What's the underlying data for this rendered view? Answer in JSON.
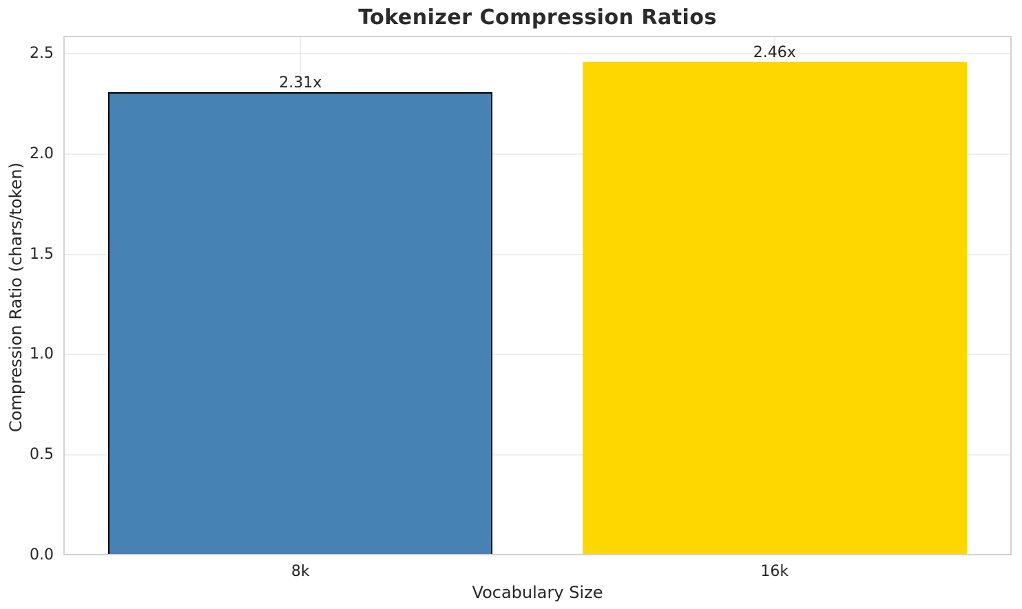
{
  "chart_data": {
    "type": "bar",
    "title": "Tokenizer Compression Ratios",
    "xlabel": "Vocabulary Size",
    "ylabel": "Compression Ratio (chars/token)",
    "categories": [
      "8k",
      "16k"
    ],
    "values": [
      2.31,
      2.46
    ],
    "bar_labels": [
      "2.31x",
      "2.46x"
    ],
    "bar_colors": [
      "#4682b4",
      "#ffd700"
    ],
    "bar_edge_colors": [
      "#000000",
      "none"
    ],
    "yticks": [
      0.0,
      0.5,
      1.0,
      1.5,
      2.0,
      2.5
    ],
    "ytick_labels": [
      "0.0",
      "0.5",
      "1.0",
      "1.5",
      "2.0",
      "2.5"
    ],
    "ylim": [
      0,
      2.59
    ],
    "grid": true,
    "legend_position": "none",
    "colors": {
      "background": "#ffffff",
      "grid": "#eeeeee",
      "spine": "#d2d2d2",
      "text": "#262626"
    }
  }
}
